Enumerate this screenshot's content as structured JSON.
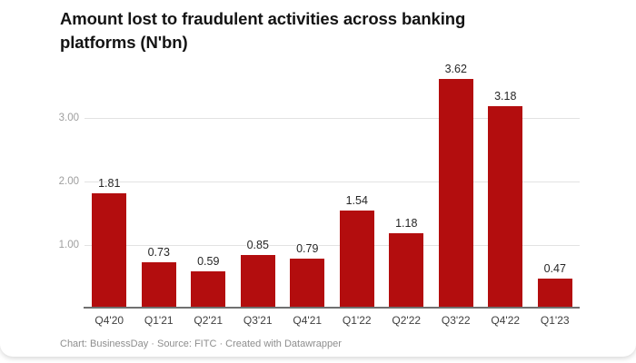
{
  "chart": {
    "title": "Amount lost to fraudulent activities across banking platforms (N'bn)"
  },
  "chart_data": {
    "type": "bar",
    "title": "Amount lost to fraudulent activities across banking platforms (N'bn)",
    "categories": [
      "Q4'20",
      "Q1'21",
      "Q2'21",
      "Q3'21",
      "Q4'21",
      "Q1'22",
      "Q2'22",
      "Q3'22",
      "Q4'22",
      "Q1'23"
    ],
    "values": [
      1.81,
      0.73,
      0.59,
      0.85,
      0.79,
      1.54,
      1.18,
      3.62,
      3.18,
      0.47
    ],
    "value_labels": [
      "1.81",
      "0.73",
      "0.59",
      "0.85",
      "0.79",
      "1.54",
      "1.18",
      "3.62",
      "3.18",
      "0.47"
    ],
    "xlabel": "",
    "ylabel": "",
    "yticks": [
      1.0,
      2.0,
      3.0
    ],
    "ytick_labels": [
      "1.00",
      "2.00",
      "3.00"
    ],
    "ylim": [
      0,
      3.71
    ],
    "grid": true,
    "legend": false,
    "bar_color": "#b30d0e"
  },
  "colors": {
    "bar": "#b30d0e",
    "gridline": "#e2e2e2",
    "axis_line": "#707070",
    "title_text": "#141414",
    "y_tick_text": "#9e9e9e",
    "x_tick_text": "#404040",
    "footer_text": "#8e8e8e"
  },
  "footer": {
    "text": "Chart: BusinessDay · Source: FITC · Created with Datawrapper"
  }
}
